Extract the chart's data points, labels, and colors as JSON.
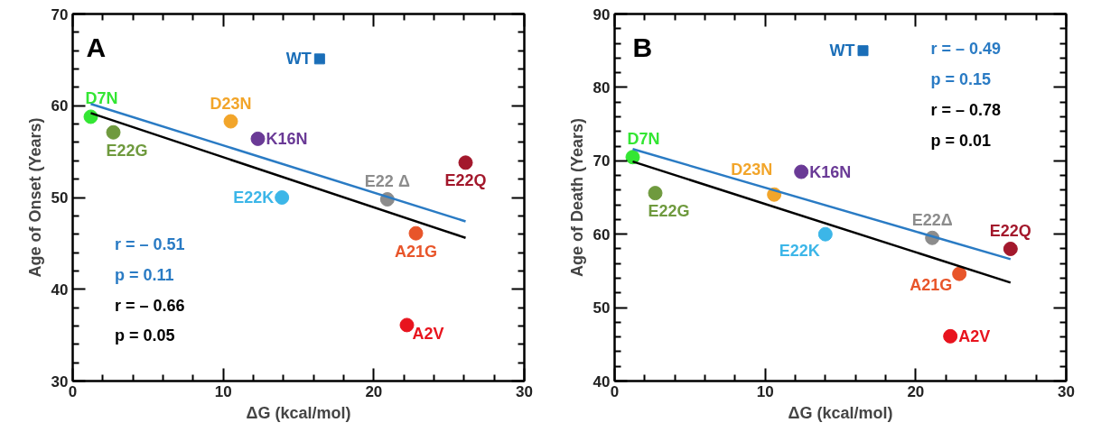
{
  "chart_data": [
    {
      "type": "scatter",
      "xlabel": "ΔG (kcal/mol)",
      "ylabel": "Age of Onset (Years)",
      "xlim": [
        0,
        30
      ],
      "ylim": [
        30,
        70
      ],
      "grid": false,
      "xticks": [
        0,
        {
          "value": 2,
          "label": null
        },
        {
          "value": 4,
          "label": null
        },
        {
          "value": 6,
          "label": null
        },
        {
          "value": 8,
          "label": null
        },
        10,
        {
          "value": 12,
          "label": null
        },
        {
          "value": 14,
          "label": null
        },
        {
          "value": 16,
          "label": null
        },
        {
          "value": 18,
          "label": null
        },
        20,
        {
          "value": 22,
          "label": null
        },
        {
          "value": 24,
          "label": null
        },
        {
          "value": 26,
          "label": null
        },
        {
          "value": 28,
          "label": null
        },
        30
      ],
      "yticks": [
        30,
        {
          "value": 32,
          "label": null
        },
        {
          "value": 34,
          "label": null
        },
        {
          "value": 36,
          "label": null
        },
        {
          "value": 38,
          "label": null
        },
        40,
        {
          "value": 42,
          "label": null
        },
        {
          "value": 44,
          "label": null
        },
        {
          "value": 46,
          "label": null
        },
        {
          "value": 48,
          "label": null
        },
        50,
        {
          "value": 52,
          "label": null
        },
        {
          "value": 54,
          "label": null
        },
        {
          "value": 56,
          "label": null
        },
        {
          "value": 58,
          "label": null
        },
        60,
        {
          "value": 62,
          "label": null
        },
        {
          "value": 64,
          "label": null
        },
        {
          "value": 66,
          "label": null
        },
        {
          "value": 68,
          "label": null
        },
        70
      ],
      "annotations": [
        "A",
        "r = – 0.51",
        "p = 0.11",
        "r = – 0.66",
        "p = 0.05"
      ],
      "series": [
        {
          "name": "D7N",
          "color": "#33e633",
          "marker": "circle",
          "x": [
            1.2
          ],
          "values": [
            58.8
          ]
        },
        {
          "name": "E22G",
          "color": "#6f9a3e",
          "marker": "circle",
          "x": [
            2.7
          ],
          "values": [
            57.1
          ]
        },
        {
          "name": "D23N",
          "color": "#f2a52a",
          "marker": "circle",
          "x": [
            10.5
          ],
          "values": [
            58.3
          ]
        },
        {
          "name": "K16N",
          "color": "#6a3a96",
          "marker": "circle",
          "x": [
            12.3
          ],
          "values": [
            56.4
          ]
        },
        {
          "name": "E22K",
          "color": "#3cb6e8",
          "marker": "circle",
          "x": [
            13.9
          ],
          "values": [
            50.0
          ]
        },
        {
          "name": "E22 Δ",
          "color": "#8c8c8c",
          "marker": "circle",
          "x": [
            20.9
          ],
          "values": [
            49.8
          ]
        },
        {
          "name": "A21G",
          "color": "#e8552a",
          "marker": "circle",
          "x": [
            22.8
          ],
          "values": [
            46.1
          ]
        },
        {
          "name": "A2V",
          "color": "#e8141e",
          "marker": "circle",
          "x": [
            22.2
          ],
          "values": [
            36.1
          ]
        },
        {
          "name": "E22Q",
          "color": "#a3182c",
          "marker": "circle",
          "x": [
            26.1
          ],
          "values": [
            53.8
          ]
        },
        {
          "name": "WT",
          "color": "#1a6eb8",
          "marker": "square",
          "x": [
            16.4
          ],
          "values": [
            65.1
          ]
        },
        {
          "type": "line",
          "color": "#2a7bc4",
          "line_style": "solid",
          "x": [
            1.2,
            26.1
          ],
          "values": [
            60.2,
            47.4
          ]
        },
        {
          "type": "line",
          "color": "#000000",
          "line_style": "solid",
          "x": [
            1.2,
            26.1
          ],
          "values": [
            59.2,
            45.6
          ]
        }
      ]
    },
    {
      "type": "scatter",
      "xlabel": "ΔG (kcal/mol)",
      "ylabel": "Age of Death (Years)",
      "xlim": [
        0,
        30
      ],
      "ylim": [
        40,
        90
      ],
      "grid": false,
      "xticks": [
        0,
        {
          "value": 2,
          "label": null
        },
        {
          "value": 4,
          "label": null
        },
        {
          "value": 6,
          "label": null
        },
        {
          "value": 8,
          "label": null
        },
        10,
        {
          "value": 12,
          "label": null
        },
        {
          "value": 14,
          "label": null
        },
        {
          "value": 16,
          "label": null
        },
        {
          "value": 18,
          "label": null
        },
        20,
        {
          "value": 22,
          "label": null
        },
        {
          "value": 24,
          "label": null
        },
        {
          "value": 26,
          "label": null
        },
        {
          "value": 28,
          "label": null
        },
        30
      ],
      "yticks": [
        40,
        {
          "value": 42,
          "label": null
        },
        {
          "value": 44,
          "label": null
        },
        {
          "value": 46,
          "label": null
        },
        {
          "value": 48,
          "label": null
        },
        50,
        {
          "value": 52,
          "label": null
        },
        {
          "value": 54,
          "label": null
        },
        {
          "value": 56,
          "label": null
        },
        {
          "value": 58,
          "label": null
        },
        60,
        {
          "value": 62,
          "label": null
        },
        {
          "value": 64,
          "label": null
        },
        {
          "value": 66,
          "label": null
        },
        {
          "value": 68,
          "label": null
        },
        70,
        {
          "value": 72,
          "label": null
        },
        {
          "value": 74,
          "label": null
        },
        {
          "value": 76,
          "label": null
        },
        {
          "value": 78,
          "label": null
        },
        80,
        {
          "value": 82,
          "label": null
        },
        {
          "value": 84,
          "label": null
        },
        {
          "value": 86,
          "label": null
        },
        {
          "value": 88,
          "label": null
        },
        90
      ],
      "annotations": [
        "B",
        "r = – 0.49",
        "p = 0.15",
        "r = – 0.78",
        "p = 0.01"
      ],
      "series": [
        {
          "name": "D7N",
          "color": "#33e633",
          "marker": "circle",
          "x": [
            1.2
          ],
          "values": [
            70.5
          ]
        },
        {
          "name": "E22G",
          "color": "#6f9a3e",
          "marker": "circle",
          "x": [
            2.7
          ],
          "values": [
            65.6
          ]
        },
        {
          "name": "D23N",
          "color": "#f2a52a",
          "marker": "circle",
          "x": [
            10.6
          ],
          "values": [
            65.4
          ]
        },
        {
          "name": "K16N",
          "color": "#6a3a96",
          "marker": "circle",
          "x": [
            12.4
          ],
          "values": [
            68.5
          ]
        },
        {
          "name": "E22K",
          "color": "#3cb6e8",
          "marker": "circle",
          "x": [
            14.0
          ],
          "values": [
            60.0
          ]
        },
        {
          "name": "E22Δ",
          "color": "#8c8c8c",
          "marker": "circle",
          "x": [
            21.1
          ],
          "values": [
            59.5
          ]
        },
        {
          "name": "A21G",
          "color": "#e8552a",
          "marker": "circle",
          "x": [
            22.9
          ],
          "values": [
            54.6
          ]
        },
        {
          "name": "A2V",
          "color": "#e8141e",
          "marker": "circle",
          "x": [
            22.3
          ],
          "values": [
            46.1
          ]
        },
        {
          "name": "E22Q",
          "color": "#a3182c",
          "marker": "circle",
          "x": [
            26.3
          ],
          "values": [
            58.0
          ]
        },
        {
          "name": "WT",
          "color": "#1a6eb8",
          "marker": "square",
          "x": [
            16.5
          ],
          "values": [
            85.0
          ]
        },
        {
          "type": "line",
          "color": "#2a7bc4",
          "line_style": "solid",
          "x": [
            1.2,
            26.3
          ],
          "values": [
            71.6,
            56.6
          ]
        },
        {
          "type": "line",
          "color": "#000000",
          "line_style": "solid",
          "x": [
            1.2,
            26.3
          ],
          "values": [
            69.9,
            53.4
          ]
        }
      ]
    }
  ]
}
